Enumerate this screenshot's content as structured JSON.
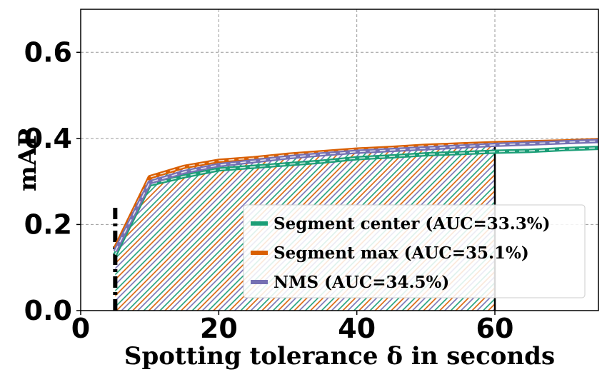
{
  "chart_data": {
    "type": "line",
    "xlabel": "Spotting tolerance δ in seconds",
    "ylabel": "mAP",
    "xlim": [
      0,
      75
    ],
    "ylim": [
      0,
      0.7
    ],
    "x_ticks": [
      "0",
      "20",
      "40",
      "60"
    ],
    "y_ticks": [
      "0.0",
      "0.2",
      "0.4",
      "0.6"
    ],
    "grid": true,
    "legend_position": "bottom-right",
    "auc_range": [
      5,
      60
    ],
    "series": [
      {
        "name": "Segment center (AUC=33.3%)",
        "color": "#1b9e77",
        "x": [
          5,
          10,
          15,
          20,
          25,
          30,
          35,
          40,
          45,
          50,
          55,
          60,
          65,
          70,
          75
        ],
        "y": [
          0.13,
          0.293,
          0.312,
          0.328,
          0.334,
          0.34,
          0.346,
          0.354,
          0.358,
          0.363,
          0.366,
          0.369,
          0.371,
          0.375,
          0.378
        ]
      },
      {
        "name": "Segment max (AUC=35.1%)",
        "color": "#d95f02",
        "x": [
          5,
          10,
          15,
          20,
          25,
          30,
          35,
          40,
          45,
          50,
          55,
          60,
          65,
          70,
          75
        ],
        "y": [
          0.145,
          0.31,
          0.334,
          0.348,
          0.354,
          0.362,
          0.368,
          0.374,
          0.378,
          0.383,
          0.386,
          0.389,
          0.391,
          0.393,
          0.396
        ]
      },
      {
        "name": "NMS (AUC=34.5%)",
        "color": "#7570b3",
        "x": [
          5,
          10,
          15,
          20,
          25,
          30,
          35,
          40,
          45,
          50,
          55,
          60,
          65,
          70,
          75
        ],
        "y": [
          0.138,
          0.298,
          0.322,
          0.338,
          0.347,
          0.356,
          0.363,
          0.369,
          0.373,
          0.377,
          0.381,
          0.385,
          0.388,
          0.391,
          0.394
        ]
      }
    ]
  }
}
